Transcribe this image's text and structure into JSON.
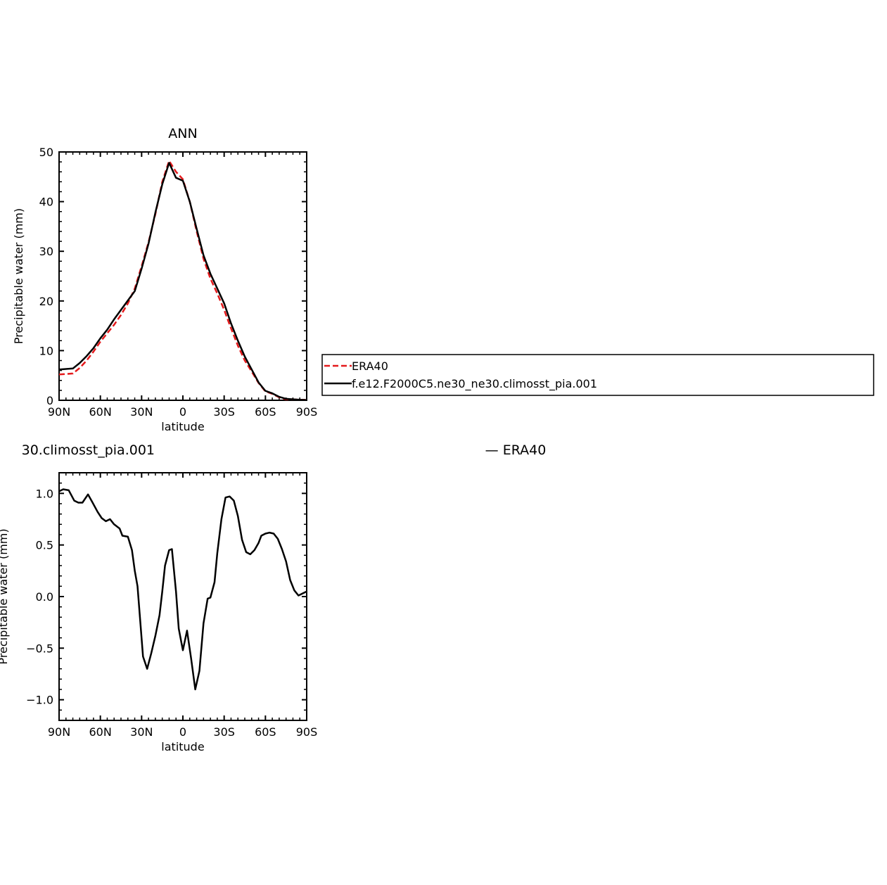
{
  "chart_data": [
    {
      "type": "line",
      "title": "ANN",
      "xlabel": "latitude",
      "ylabel": "Precipitable water (mm)",
      "xlim": [
        90,
        -90
      ],
      "ylim": [
        0,
        50
      ],
      "xticks": [
        {
          "value": 90,
          "label": "90N"
        },
        {
          "value": 60,
          "label": "60N"
        },
        {
          "value": 30,
          "label": "30N"
        },
        {
          "value": 0,
          "label": "0"
        },
        {
          "value": -30,
          "label": "30S"
        },
        {
          "value": -60,
          "label": "60S"
        },
        {
          "value": -90,
          "label": "90S"
        }
      ],
      "yticks": [
        {
          "value": 0,
          "label": "0"
        },
        {
          "value": 10,
          "label": "10"
        },
        {
          "value": 20,
          "label": "20"
        },
        {
          "value": 30,
          "label": "30"
        },
        {
          "value": 40,
          "label": "40"
        },
        {
          "value": 50,
          "label": "50"
        }
      ],
      "legend_position": "right",
      "series": [
        {
          "name": "ERA40",
          "color": "#e41a1c",
          "dash": "dashed",
          "x": [
            90,
            80,
            75,
            70,
            65,
            60,
            55,
            50,
            45,
            40,
            35,
            30,
            25,
            20,
            15,
            10,
            5,
            0,
            -5,
            -10,
            -15,
            -20,
            -25,
            -30,
            -35,
            -40,
            -45,
            -50,
            -55,
            -60,
            -65,
            -70,
            -75,
            -80,
            -85,
            -90
          ],
          "y": [
            5.2,
            5.4,
            6.5,
            8.0,
            9.8,
            11.8,
            13.5,
            15.2,
            17.2,
            19.5,
            22.5,
            27.0,
            31.8,
            37.5,
            44.0,
            48.2,
            46.0,
            44.5,
            40.0,
            34.0,
            28.5,
            24.5,
            21.5,
            18.2,
            14.5,
            11.0,
            8.0,
            5.8,
            3.5,
            1.8,
            1.3,
            0.6,
            0.2,
            0.2,
            0.1,
            0.1
          ]
        },
        {
          "name": "f.e12.F2000C5.ne30_ne30.climosst_pia.001",
          "color": "#000000",
          "dash": "solid",
          "x": [
            90,
            80,
            75,
            70,
            65,
            60,
            55,
            50,
            45,
            40,
            35,
            30,
            25,
            20,
            15,
            10,
            5,
            0,
            -5,
            -10,
            -15,
            -20,
            -25,
            -30,
            -35,
            -40,
            -45,
            -50,
            -55,
            -60,
            -65,
            -70,
            -75,
            -80,
            -85,
            -90
          ],
          "y": [
            6.2,
            6.4,
            7.5,
            8.9,
            10.5,
            12.5,
            14.2,
            16.3,
            18.2,
            20.1,
            22.0,
            26.5,
            31.5,
            37.8,
            43.5,
            47.8,
            44.8,
            44.2,
            40.0,
            34.5,
            29.2,
            25.5,
            22.5,
            19.5,
            15.5,
            12.0,
            8.8,
            6.2,
            3.6,
            1.9,
            1.4,
            0.7,
            0.3,
            0.2,
            0.1,
            0.05
          ]
        }
      ]
    },
    {
      "type": "line",
      "title": "30.climosst_pia.001",
      "xlabel": "latitude",
      "ylabel": "Precipitable water (mm)",
      "xlim": [
        90,
        -90
      ],
      "ylim": [
        -1.2,
        1.2
      ],
      "xticks": [
        {
          "value": 90,
          "label": "90N"
        },
        {
          "value": 60,
          "label": "60N"
        },
        {
          "value": 30,
          "label": "30N"
        },
        {
          "value": 0,
          "label": "0"
        },
        {
          "value": -30,
          "label": "30S"
        },
        {
          "value": -60,
          "label": "60S"
        },
        {
          "value": -90,
          "label": "90S"
        }
      ],
      "yticks": [
        {
          "value": 1.0,
          "label": "1.0"
        },
        {
          "value": 0.5,
          "label": "0.5"
        },
        {
          "value": 0.0,
          "label": "0.0"
        },
        {
          "value": -0.5,
          "label": "−0.5"
        },
        {
          "value": -1.0,
          "label": "−1.0"
        }
      ],
      "right_title": "— ERA40",
      "series": [
        {
          "name": "",
          "color": "#000000",
          "dash": "solid",
          "x": [
            90,
            87,
            83,
            79,
            76,
            73,
            69,
            66,
            62,
            59,
            56,
            53,
            50,
            46,
            44,
            40,
            37,
            35,
            33,
            29,
            26,
            23,
            20,
            17,
            15,
            13,
            10,
            8,
            5,
            3,
            1,
            0,
            -3,
            -6,
            -9,
            -12,
            -15,
            -18,
            -20,
            -23,
            -25,
            -28,
            -31,
            -34,
            -37,
            -40,
            -43,
            -46,
            -49,
            -52,
            -55,
            -57,
            -60,
            -63,
            -66,
            -69,
            -72,
            -75,
            -78,
            -81,
            -84,
            -87,
            -90
          ],
          "y": [
            1.02,
            1.04,
            1.03,
            0.93,
            0.91,
            0.91,
            0.99,
            0.92,
            0.82,
            0.76,
            0.73,
            0.75,
            0.7,
            0.66,
            0.59,
            0.58,
            0.45,
            0.25,
            0.1,
            -0.58,
            -0.7,
            -0.55,
            -0.38,
            -0.18,
            0.05,
            0.3,
            0.45,
            0.46,
            0.05,
            -0.31,
            -0.45,
            -0.52,
            -0.33,
            -0.6,
            -0.9,
            -0.72,
            -0.26,
            -0.02,
            -0.01,
            0.14,
            0.42,
            0.75,
            0.96,
            0.97,
            0.93,
            0.78,
            0.55,
            0.43,
            0.41,
            0.45,
            0.52,
            0.59,
            0.61,
            0.62,
            0.61,
            0.56,
            0.46,
            0.34,
            0.16,
            0.06,
            0.01,
            0.03,
            0.05
          ]
        }
      ]
    }
  ]
}
